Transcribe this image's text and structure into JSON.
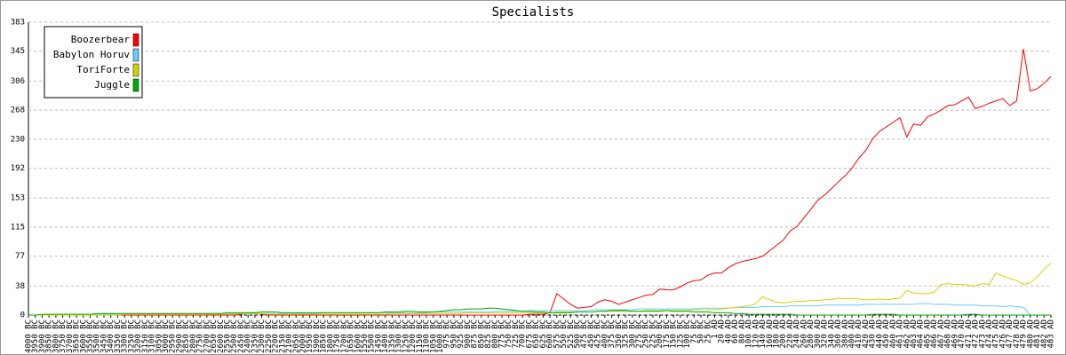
{
  "chart_data": {
    "type": "line",
    "title": "Specialists",
    "categories": [
      "4000 BC",
      "3950 BC",
      "3900 BC",
      "3850 BC",
      "3800 BC",
      "3750 BC",
      "3700 BC",
      "3650 BC",
      "3600 BC",
      "3550 BC",
      "3500 BC",
      "3450 BC",
      "3400 BC",
      "3350 BC",
      "3300 BC",
      "3250 BC",
      "3200 BC",
      "3150 BC",
      "3100 BC",
      "3050 BC",
      "3000 BC",
      "2950 BC",
      "2900 BC",
      "2850 BC",
      "2800 BC",
      "2750 BC",
      "2700 BC",
      "2650 BC",
      "2600 BC",
      "2550 BC",
      "2500 BC",
      "2450 BC",
      "2400 BC",
      "2350 BC",
      "2300 BC",
      "2250 BC",
      "2200 BC",
      "2150 BC",
      "2100 BC",
      "2050 BC",
      "2000 BC",
      "1950 BC",
      "1900 BC",
      "1850 BC",
      "1800 BC",
      "1750 BC",
      "1700 BC",
      "1650 BC",
      "1600 BC",
      "1550 BC",
      "1500 BC",
      "1450 BC",
      "1400 BC",
      "1350 BC",
      "1300 BC",
      "1250 BC",
      "1200 BC",
      "1150 BC",
      "1100 BC",
      "1050 BC",
      "1000 BC",
      "975 BC",
      "950 BC",
      "925 BC",
      "900 BC",
      "875 BC",
      "850 BC",
      "825 BC",
      "800 BC",
      "775 BC",
      "750 BC",
      "725 BC",
      "700 BC",
      "675 BC",
      "650 BC",
      "625 BC",
      "600 BC",
      "575 BC",
      "550 BC",
      "525 BC",
      "500 BC",
      "475 BC",
      "450 BC",
      "425 BC",
      "400 BC",
      "375 BC",
      "350 BC",
      "325 BC",
      "300 BC",
      "275 BC",
      "250 BC",
      "225 BC",
      "200 BC",
      "175 BC",
      "150 BC",
      "125 BC",
      "100 BC",
      "75 BC",
      "50 BC",
      "25 BC",
      "1 AD",
      "20 AD",
      "40 AD",
      "60 AD",
      "80 AD",
      "100 AD",
      "120 AD",
      "140 AD",
      "160 AD",
      "180 AD",
      "200 AD",
      "220 AD",
      "240 AD",
      "260 AD",
      "280 AD",
      "300 AD",
      "320 AD",
      "340 AD",
      "360 AD",
      "380 AD",
      "400 AD",
      "410 AD",
      "420 AD",
      "430 AD",
      "440 AD",
      "450 AD",
      "460 AD",
      "461 AD",
      "462 AD",
      "463 AD",
      "464 AD",
      "465 AD",
      "466 AD",
      "467 AD",
      "468 AD",
      "469 AD",
      "470 AD",
      "471 AD",
      "472 AD",
      "473 AD",
      "474 AD",
      "475 AD",
      "476 AD",
      "477 AD",
      "478 AD",
      "479 AD",
      "480 AD",
      "481 AD",
      "482 AD",
      "483 AD"
    ],
    "series": [
      {
        "name": "Boozerbear",
        "color": "#ff0000",
        "values": [
          0,
          0,
          0,
          0,
          0,
          0,
          0,
          0,
          0,
          0,
          0,
          0,
          0,
          0,
          0,
          0,
          0,
          0,
          0,
          0,
          0,
          0,
          0,
          0,
          0,
          0,
          0,
          0,
          0,
          0,
          0,
          1,
          3,
          3,
          1,
          0,
          0,
          0,
          0,
          0,
          0,
          0,
          0,
          0,
          0,
          0,
          0,
          0,
          0,
          0,
          0,
          0,
          0,
          0,
          0,
          0,
          0,
          0,
          0,
          0,
          0,
          0,
          0,
          0,
          0,
          0,
          0,
          0,
          0,
          0,
          0,
          0,
          0,
          1,
          1,
          1,
          3,
          28,
          21,
          14,
          9,
          10,
          11,
          17,
          20,
          18,
          14,
          17,
          20,
          23,
          26,
          27,
          34,
          33,
          33,
          37,
          42,
          45,
          46,
          52,
          55,
          55,
          62,
          67,
          70,
          72,
          74,
          77,
          84,
          91,
          98,
          110,
          116,
          127,
          138,
          150,
          157,
          165,
          174,
          182,
          192,
          205,
          215,
          230,
          240,
          246,
          252,
          258,
          233,
          250,
          248,
          259,
          263,
          268,
          274,
          275,
          280,
          285,
          270,
          273,
          277,
          280,
          283,
          274,
          280,
          348,
          293,
          296,
          303,
          312
        ]
      },
      {
        "name": "Babylon Horuv",
        "color": "#66ccff",
        "values": [
          0,
          0,
          0,
          0,
          0,
          0,
          0,
          0,
          0,
          0,
          1,
          1,
          1,
          1,
          1,
          1,
          1,
          1,
          1,
          1,
          1,
          1,
          1,
          1,
          1,
          1,
          1,
          2,
          2,
          2,
          2,
          2,
          2,
          2,
          2,
          2,
          2,
          2,
          2,
          2,
          2,
          2,
          2,
          3,
          3,
          3,
          3,
          3,
          3,
          3,
          3,
          3,
          3,
          3,
          3,
          3,
          3,
          3,
          3,
          4,
          4,
          4,
          4,
          4,
          4,
          4,
          4,
          4,
          5,
          5,
          5,
          5,
          5,
          6,
          6,
          6,
          6,
          6,
          6,
          6,
          6,
          6,
          7,
          7,
          7,
          7,
          7,
          7,
          7,
          8,
          8,
          8,
          8,
          8,
          8,
          8,
          8,
          8,
          9,
          9,
          9,
          9,
          9,
          10,
          10,
          10,
          10,
          11,
          11,
          11,
          11,
          12,
          12,
          12,
          12,
          12,
          13,
          13,
          13,
          13,
          13,
          13,
          14,
          14,
          14,
          14,
          14,
          14,
          14,
          14,
          15,
          15,
          14,
          14,
          14,
          13,
          13,
          13,
          13,
          12,
          12,
          12,
          11,
          12,
          11,
          10,
          0,
          0,
          0,
          0
        ]
      },
      {
        "name": "ToriForte",
        "color": "#d4d400",
        "values": [
          0,
          0,
          0,
          0,
          0,
          0,
          0,
          0,
          0,
          0,
          0,
          0,
          0,
          0,
          1,
          1,
          1,
          1,
          1,
          1,
          1,
          1,
          1,
          1,
          1,
          1,
          1,
          1,
          1,
          1,
          1,
          2,
          2,
          2,
          2,
          1,
          1,
          1,
          1,
          1,
          1,
          1,
          1,
          1,
          1,
          1,
          1,
          1,
          1,
          1,
          1,
          1,
          1,
          2,
          2,
          2,
          2,
          2,
          2,
          2,
          2,
          2,
          2,
          2,
          3,
          3,
          3,
          3,
          3,
          3,
          3,
          3,
          3,
          3,
          3,
          3,
          3,
          4,
          4,
          4,
          4,
          4,
          4,
          5,
          5,
          5,
          5,
          5,
          5,
          5,
          6,
          6,
          6,
          6,
          6,
          6,
          6,
          7,
          7,
          7,
          7,
          8,
          9,
          10,
          11,
          12,
          15,
          24,
          20,
          17,
          16,
          17,
          18,
          18,
          19,
          19,
          20,
          20,
          22,
          21,
          22,
          21,
          20,
          20,
          21,
          20,
          21,
          22,
          32,
          29,
          28,
          28,
          30,
          40,
          41,
          40,
          40,
          39,
          38,
          41,
          40,
          55,
          51,
          48,
          45,
          40,
          42,
          50,
          60,
          68
        ]
      },
      {
        "name": "Juggle",
        "color": "#00aa00",
        "values": [
          0,
          0,
          1,
          1,
          1,
          1,
          1,
          1,
          1,
          1,
          2,
          2,
          2,
          2,
          2,
          2,
          2,
          2,
          2,
          2,
          2,
          2,
          2,
          2,
          2,
          2,
          2,
          2,
          2,
          3,
          3,
          3,
          3,
          3,
          4,
          4,
          4,
          3,
          3,
          3,
          3,
          3,
          3,
          3,
          3,
          3,
          3,
          3,
          3,
          3,
          3,
          3,
          4,
          4,
          4,
          5,
          5,
          4,
          4,
          4,
          5,
          6,
          7,
          7,
          8,
          8,
          8,
          9,
          9,
          8,
          7,
          6,
          5,
          5,
          4,
          4,
          3,
          3,
          3,
          3,
          4,
          4,
          4,
          5,
          5,
          6,
          6,
          6,
          5,
          5,
          5,
          5,
          5,
          6,
          5,
          5,
          5,
          4,
          4,
          4,
          3,
          3,
          3,
          2,
          2,
          1,
          1,
          1,
          1,
          1,
          1,
          1,
          0,
          0,
          0,
          0,
          0,
          0,
          0,
          0,
          0,
          0,
          0,
          1,
          1,
          1,
          1,
          0,
          0,
          0,
          0,
          0,
          0,
          0,
          0,
          0,
          0,
          1,
          1,
          0,
          0,
          0,
          0,
          0,
          0,
          0,
          0,
          0,
          0,
          0
        ]
      }
    ],
    "ylim": [
      0,
      383
    ],
    "yticks": [
      0,
      38,
      77,
      115,
      153,
      192,
      230,
      268,
      306,
      345,
      383
    ],
    "grid": true,
    "legend": "top-left"
  }
}
